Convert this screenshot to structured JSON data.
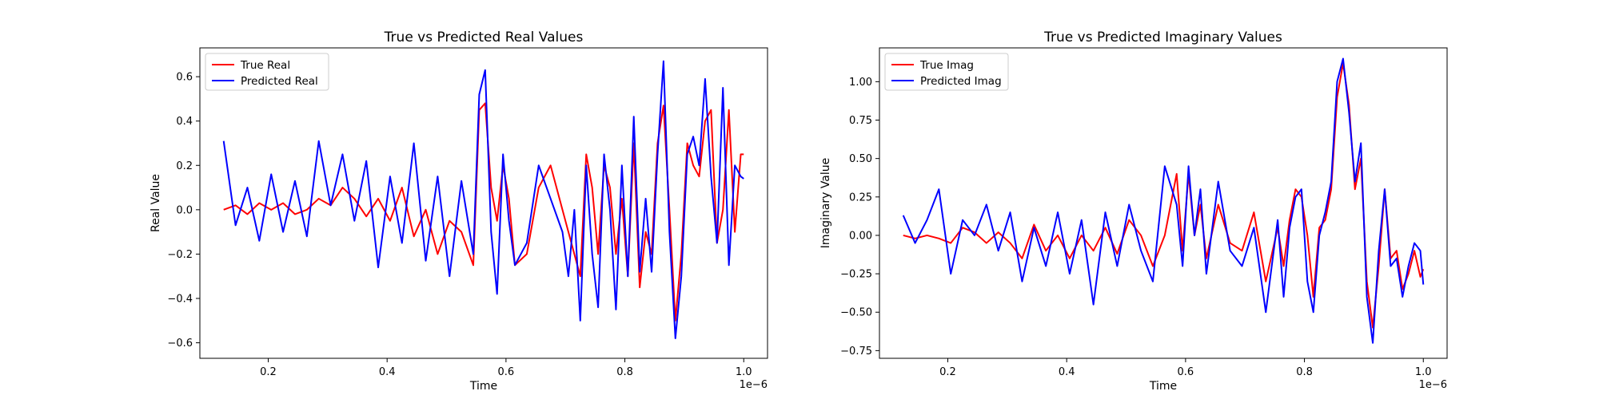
{
  "figure": {
    "offset_label": "1e−6"
  },
  "chart_data": [
    {
      "type": "line",
      "title": "True vs Predicted Real Values",
      "xlabel": "Time",
      "ylabel": "Real Value",
      "xlim": [
        0.085,
        1.04
      ],
      "ylim": [
        -0.67,
        0.73
      ],
      "xticks": [
        0.2,
        0.4,
        0.6,
        0.8,
        1.0
      ],
      "xtick_labels": [
        "0.2",
        "0.4",
        "0.6",
        "0.8",
        "1.0"
      ],
      "yticks": [
        -0.6,
        -0.4,
        -0.2,
        0.0,
        0.2,
        0.4,
        0.6
      ],
      "ytick_labels": [
        "−0.6",
        "−0.4",
        "−0.2",
        "0.0",
        "0.2",
        "0.4",
        "0.6"
      ],
      "legend_position": "top-left",
      "x": [
        0.125,
        0.145,
        0.165,
        0.185,
        0.205,
        0.225,
        0.245,
        0.265,
        0.285,
        0.305,
        0.325,
        0.345,
        0.365,
        0.385,
        0.405,
        0.425,
        0.445,
        0.465,
        0.485,
        0.505,
        0.525,
        0.545,
        0.555,
        0.565,
        0.575,
        0.585,
        0.595,
        0.605,
        0.615,
        0.635,
        0.655,
        0.675,
        0.695,
        0.705,
        0.715,
        0.725,
        0.735,
        0.745,
        0.755,
        0.765,
        0.775,
        0.785,
        0.795,
        0.805,
        0.815,
        0.825,
        0.835,
        0.845,
        0.855,
        0.865,
        0.875,
        0.885,
        0.895,
        0.905,
        0.915,
        0.925,
        0.935,
        0.945,
        0.955,
        0.965,
        0.975,
        0.985,
        0.995,
        1.0
      ],
      "series": [
        {
          "name": "True Real",
          "color": "#ff0000",
          "values": [
            0.0,
            0.02,
            -0.02,
            0.03,
            0.0,
            0.03,
            -0.02,
            0.0,
            0.05,
            0.02,
            0.1,
            0.05,
            -0.03,
            0.05,
            -0.05,
            0.1,
            -0.12,
            0.0,
            -0.2,
            -0.05,
            -0.1,
            -0.25,
            0.45,
            0.48,
            0.1,
            -0.05,
            0.2,
            0.05,
            -0.25,
            -0.2,
            0.1,
            0.2,
            0.0,
            -0.1,
            -0.2,
            -0.3,
            0.25,
            0.1,
            -0.2,
            0.2,
            0.1,
            -0.2,
            0.05,
            -0.3,
            0.3,
            -0.35,
            -0.1,
            -0.2,
            0.3,
            0.47,
            0.0,
            -0.5,
            -0.2,
            0.3,
            0.2,
            0.15,
            0.4,
            0.45,
            -0.15,
            0.0,
            0.45,
            -0.1,
            0.25,
            0.25
          ]
        },
        {
          "name": "Predicted Real",
          "color": "#0000ff",
          "values": [
            0.31,
            -0.07,
            0.1,
            -0.14,
            0.16,
            -0.1,
            0.13,
            -0.12,
            0.31,
            0.02,
            0.25,
            -0.05,
            0.22,
            -0.26,
            0.15,
            -0.15,
            0.3,
            -0.23,
            0.15,
            -0.3,
            0.13,
            -0.2,
            0.52,
            0.63,
            -0.1,
            -0.38,
            0.25,
            -0.05,
            -0.25,
            -0.15,
            0.2,
            0.05,
            -0.1,
            -0.3,
            0.0,
            -0.5,
            0.2,
            -0.2,
            -0.44,
            0.25,
            0.0,
            -0.45,
            0.2,
            -0.3,
            0.42,
            -0.28,
            0.05,
            -0.28,
            0.25,
            0.67,
            -0.1,
            -0.58,
            -0.3,
            0.25,
            0.33,
            0.2,
            0.59,
            0.15,
            -0.15,
            0.55,
            -0.25,
            0.2,
            0.15,
            0.14
          ]
        }
      ]
    },
    {
      "type": "line",
      "title": "True vs Predicted Imaginary Values",
      "xlabel": "Time",
      "ylabel": "Imaginary Value",
      "xlim": [
        0.085,
        1.04
      ],
      "ylim": [
        -0.8,
        1.22
      ],
      "xticks": [
        0.2,
        0.4,
        0.6,
        0.8,
        1.0
      ],
      "xtick_labels": [
        "0.2",
        "0.4",
        "0.6",
        "0.8",
        "1.0"
      ],
      "yticks": [
        -0.75,
        -0.5,
        -0.25,
        0.0,
        0.25,
        0.5,
        0.75,
        1.0
      ],
      "ytick_labels": [
        "−0.75",
        "−0.50",
        "−0.25",
        "0.00",
        "0.25",
        "0.50",
        "0.75",
        "1.00"
      ],
      "legend_position": "top-left",
      "x": [
        0.125,
        0.145,
        0.165,
        0.185,
        0.205,
        0.225,
        0.245,
        0.265,
        0.285,
        0.305,
        0.325,
        0.345,
        0.365,
        0.385,
        0.405,
        0.425,
        0.445,
        0.465,
        0.485,
        0.505,
        0.525,
        0.545,
        0.565,
        0.585,
        0.595,
        0.605,
        0.615,
        0.625,
        0.635,
        0.655,
        0.675,
        0.695,
        0.715,
        0.735,
        0.755,
        0.765,
        0.775,
        0.785,
        0.795,
        0.805,
        0.815,
        0.825,
        0.835,
        0.845,
        0.855,
        0.865,
        0.875,
        0.885,
        0.895,
        0.905,
        0.915,
        0.925,
        0.935,
        0.945,
        0.955,
        0.965,
        0.975,
        0.985,
        0.995,
        1.0
      ],
      "series": [
        {
          "name": "True Imag",
          "color": "#ff0000",
          "values": [
            0.0,
            -0.02,
            0.0,
            -0.02,
            -0.05,
            0.05,
            0.02,
            -0.05,
            0.02,
            -0.05,
            -0.15,
            0.07,
            -0.1,
            0.0,
            -0.15,
            0.0,
            -0.1,
            0.05,
            -0.12,
            0.1,
            0.0,
            -0.2,
            0.0,
            0.4,
            -0.1,
            0.4,
            0.0,
            0.2,
            -0.15,
            0.2,
            -0.05,
            -0.1,
            0.15,
            -0.3,
            0.05,
            -0.2,
            0.1,
            0.3,
            0.25,
            0.0,
            -0.4,
            0.05,
            0.1,
            0.3,
            0.9,
            1.12,
            0.85,
            0.3,
            0.5,
            -0.3,
            -0.6,
            -0.2,
            0.3,
            -0.15,
            -0.1,
            -0.35,
            -0.25,
            -0.1,
            -0.27,
            -0.22
          ]
        },
        {
          "name": "Predicted Imag",
          "color": "#0000ff",
          "values": [
            0.13,
            -0.05,
            0.1,
            0.3,
            -0.25,
            0.1,
            0.0,
            0.2,
            -0.1,
            0.15,
            -0.3,
            0.05,
            -0.2,
            0.15,
            -0.25,
            0.1,
            -0.45,
            0.15,
            -0.2,
            0.2,
            -0.1,
            -0.3,
            0.45,
            0.2,
            -0.2,
            0.45,
            0.0,
            0.3,
            -0.25,
            0.35,
            -0.1,
            -0.2,
            0.05,
            -0.5,
            0.1,
            -0.4,
            0.05,
            0.25,
            0.3,
            -0.3,
            -0.5,
            0.0,
            0.15,
            0.35,
            1.0,
            1.15,
            0.8,
            0.35,
            0.6,
            -0.4,
            -0.7,
            -0.1,
            0.3,
            -0.2,
            -0.15,
            -0.4,
            -0.2,
            -0.05,
            -0.1,
            -0.32
          ]
        }
      ]
    }
  ]
}
